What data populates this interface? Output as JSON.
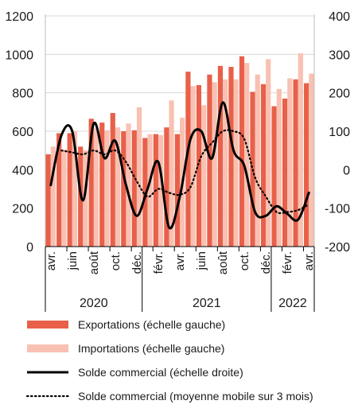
{
  "chart_data": {
    "type": "bar",
    "months": [
      "avr.",
      "mai",
      "juin",
      "juil.",
      "août",
      "sept.",
      "oct.",
      "nov.",
      "déc.",
      "janv.",
      "févr.",
      "mars",
      "avr.",
      "mai",
      "juin",
      "juil.",
      "août",
      "sept.",
      "oct.",
      "nov.",
      "déc.",
      "janv.",
      "févr.",
      "mars",
      "avr."
    ],
    "month_ticks_shown": [
      {
        "i": 0,
        "label": "avr."
      },
      {
        "i": 2,
        "label": "juin"
      },
      {
        "i": 4,
        "label": "août"
      },
      {
        "i": 6,
        "label": "oct."
      },
      {
        "i": 8,
        "label": "déc."
      },
      {
        "i": 10,
        "label": "févr."
      },
      {
        "i": 12,
        "label": "avr."
      },
      {
        "i": 14,
        "label": "juin"
      },
      {
        "i": 16,
        "label": "août"
      },
      {
        "i": 18,
        "label": "oct."
      },
      {
        "i": 20,
        "label": "déc."
      },
      {
        "i": 22,
        "label": "févr."
      },
      {
        "i": 24,
        "label": "avr."
      }
    ],
    "years": [
      {
        "label": "2020",
        "from": 0,
        "to": 8
      },
      {
        "label": "2021",
        "from": 9,
        "to": 20
      },
      {
        "label": "2022",
        "from": 21,
        "to": 24
      }
    ],
    "y_left": {
      "min": 0,
      "max": 1200,
      "ticks": [
        "0",
        "200",
        "400",
        "600",
        "800",
        "1000",
        "1200"
      ]
    },
    "y_right": {
      "min": -200,
      "max": 400,
      "ticks": [
        "-200",
        "-100",
        "0",
        "100",
        "200",
        "300",
        "400"
      ]
    },
    "series": [
      {
        "name": "Exportations (échelle gauche)",
        "color": "#e8604a",
        "axis": "left",
        "values": [
          480,
          590,
          590,
          520,
          665,
          645,
          695,
          600,
          605,
          565,
          585,
          620,
          585,
          910,
          840,
          895,
          940,
          935,
          990,
          805,
          845,
          730,
          770,
          870,
          850
        ]
      },
      {
        "name": "Importations (échelle gauche)",
        "color": "#f8c1b2",
        "axis": "left",
        "values": [
          520,
          505,
          600,
          500,
          615,
          605,
          620,
          640,
          725,
          585,
          580,
          760,
          670,
          835,
          735,
          855,
          870,
          870,
          955,
          895,
          975,
          820,
          875,
          1005,
          900
        ]
      },
      {
        "name": "Solde commercial (échelle droite)",
        "color": "#000000",
        "axis": "right",
        "style": "solid",
        "values": [
          -40,
          90,
          100,
          -80,
          120,
          30,
          75,
          -40,
          -120,
          -50,
          20,
          -150,
          -70,
          80,
          100,
          30,
          175,
          50,
          10,
          -110,
          -120,
          -95,
          -115,
          -130,
          -60
        ]
      },
      {
        "name": "Solde commercial (moyenne mobile sur 3 mois)",
        "color": "#000000",
        "axis": "right",
        "style": "dotted",
        "values": [
          null,
          50,
          45,
          40,
          50,
          40,
          50,
          20,
          -30,
          -70,
          -50,
          -60,
          -65,
          -45,
          35,
          70,
          100,
          100,
          80,
          -20,
          -70,
          -110,
          -110,
          -105,
          -90
        ]
      }
    ]
  }
}
